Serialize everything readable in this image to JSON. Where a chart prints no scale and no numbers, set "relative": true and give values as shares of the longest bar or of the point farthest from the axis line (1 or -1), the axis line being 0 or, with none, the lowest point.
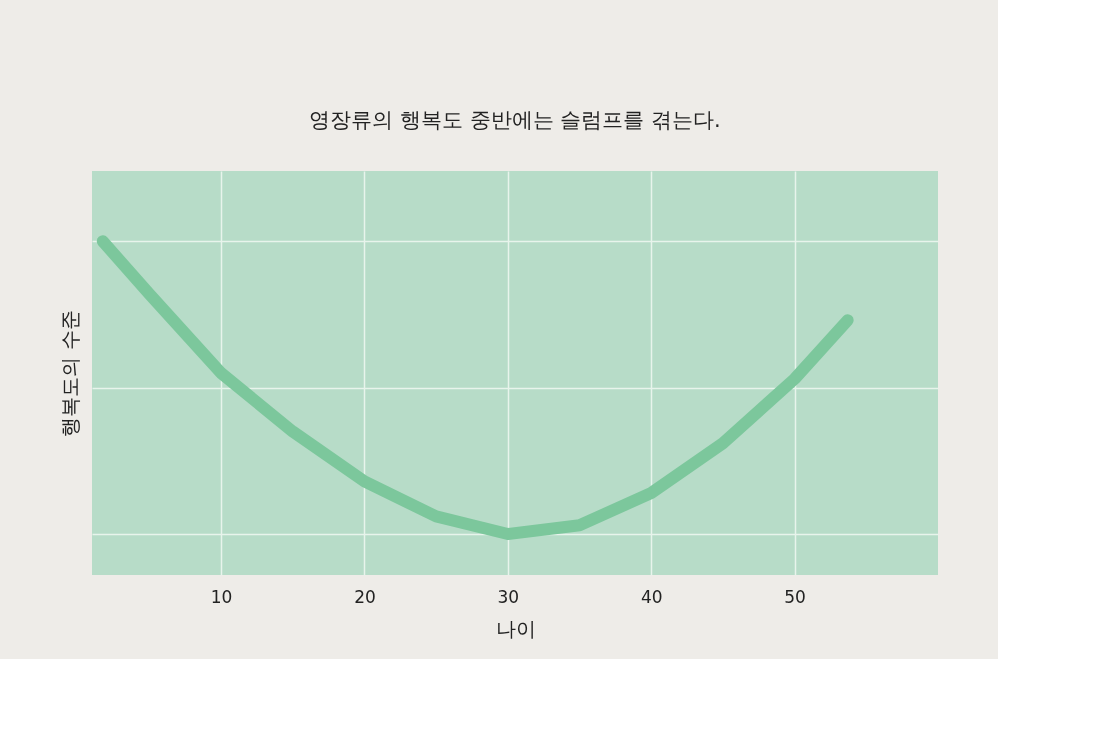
{
  "chart_data": {
    "type": "line",
    "title": "영장류의 행복도 중반에는 슬럼프를 겪는다.",
    "xlabel": "나이",
    "ylabel": "행복도의 수준",
    "relative": true,
    "xlim": [
      1,
      60
    ],
    "xticks": [
      10,
      20,
      30,
      40,
      50
    ],
    "grid": true,
    "marker": "none",
    "line_style": "solid",
    "x": [
      1.75,
      5,
      10,
      15,
      20,
      25,
      30,
      35,
      40,
      45,
      50,
      53.7
    ],
    "series": [
      {
        "color": "#7cc79c",
        "values": [
          1.0,
          0.82,
          0.55,
          0.35,
          0.18,
          0.06,
          0.0,
          0.03,
          0.14,
          0.31,
          0.53,
          0.73
        ]
      }
    ]
  }
}
